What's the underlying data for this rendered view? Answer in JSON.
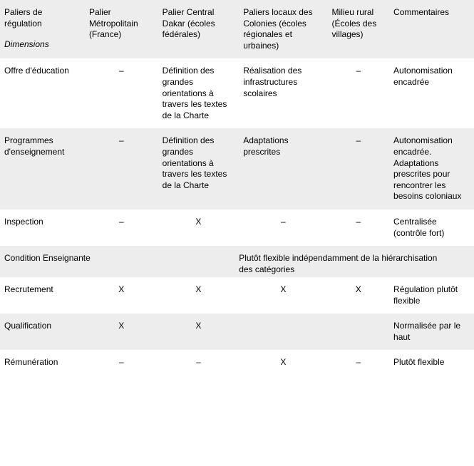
{
  "columns": {
    "dim_header": "Paliers de régulation",
    "dim_sub": "Dimensions",
    "metro": "Palier Métropolitain (France)",
    "dakar": "Palier Central Dakar (écoles fédérales)",
    "locaux": "Paliers locaux des Colonies (écoles régionales et urbaines)",
    "rural": "Milieu rural (Écoles des villages)",
    "comm": "Commentaires"
  },
  "rows": {
    "offre": {
      "label": "Offre d'éducation",
      "metro": "–",
      "dakar": "Définition des grandes orientations à travers les textes de la Charte",
      "locaux": "Réalisation des infrastructures scolaires",
      "rural": "–",
      "comm": "Autonomisation encadrée"
    },
    "programmes": {
      "label": "Programmes d'enseignement",
      "metro": "–",
      "dakar": "Définition des grandes orientations à travers les textes de la Charte",
      "locaux": "Adaptations prescrites",
      "rural": "–",
      "comm": "Autonomisation encadrée. Adaptations prescrites pour rencontrer les besoins coloniaux"
    },
    "inspection": {
      "label": "Inspection",
      "metro": "–",
      "dakar": "X",
      "locaux": "–",
      "rural": "–",
      "comm": "Centralisée (contrôle fort)"
    },
    "condition": {
      "label": "Condition Enseignante",
      "merged": "Plutôt flexible indépendamment de la hiérarchisation des catégories"
    },
    "recrutement": {
      "label": "Recrutement",
      "metro": "X",
      "dakar": "X",
      "locaux": "X",
      "rural": "X",
      "comm": "Régulation plutôt flexible"
    },
    "qualification": {
      "label": "Qualification",
      "metro": "X",
      "dakar": "X",
      "locaux": "",
      "rural": "",
      "comm": "Normalisée par le haut"
    },
    "remuneration": {
      "label": "Rémunération",
      "metro": "–",
      "dakar": "–",
      "locaux": "X",
      "rural": "–",
      "comm": "Plutôt flexible"
    }
  }
}
